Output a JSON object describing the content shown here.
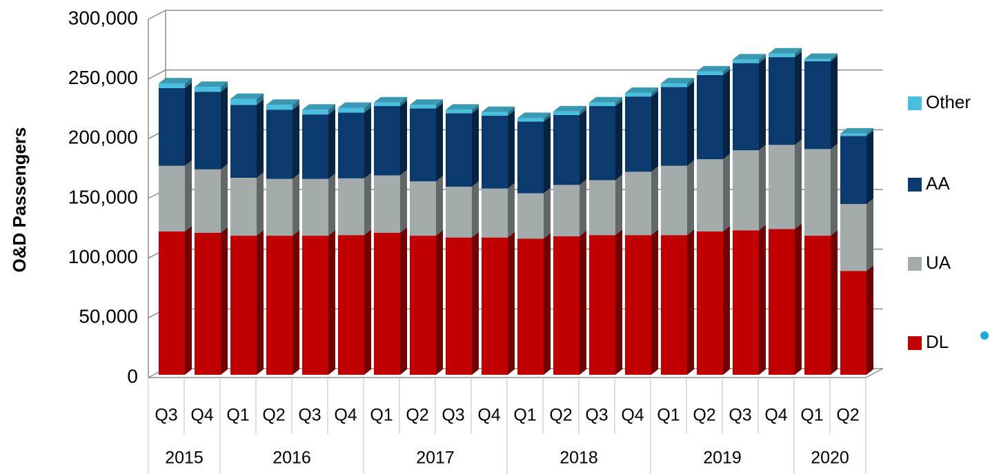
{
  "chart_data": {
    "type": "bar",
    "stacked": true,
    "y_label": "O&D Passengers",
    "categories": [
      "Q3",
      "Q4",
      "Q1",
      "Q2",
      "Q3",
      "Q4",
      "Q1",
      "Q2",
      "Q3",
      "Q4",
      "Q1",
      "Q2",
      "Q3",
      "Q4",
      "Q1",
      "Q2",
      "Q3",
      "Q4",
      "Q1",
      "Q2"
    ],
    "years": [
      "2015",
      "2016",
      "2017",
      "2018",
      "2019",
      "2020"
    ],
    "series": [
      {
        "name": "DL",
        "color": "#c00000",
        "values": [
          120000,
          119000,
          116500,
          116500,
          116500,
          117000,
          119000,
          116500,
          115000,
          115000,
          114000,
          116000,
          117000,
          117000,
          117000,
          120000,
          121000,
          122000,
          116500,
          87000
        ]
      },
      {
        "name": "UA",
        "color": "#a3abab",
        "values": [
          55000,
          53000,
          48500,
          47500,
          47500,
          47500,
          48000,
          45500,
          42500,
          41000,
          38000,
          43000,
          46000,
          53000,
          58000,
          60500,
          67000,
          70500,
          72500,
          56000
        ]
      },
      {
        "name": "AA",
        "color": "#0a3a6e",
        "values": [
          65000,
          65000,
          61000,
          58000,
          54000,
          55000,
          58000,
          61000,
          61500,
          61000,
          60000,
          58500,
          62000,
          63000,
          66000,
          70500,
          73000,
          73500,
          73500,
          57000
        ]
      },
      {
        "name": "Other",
        "color": "#48bfe0",
        "values": [
          4000,
          4000,
          5000,
          4000,
          4000,
          4000,
          3000,
          3000,
          3000,
          3000,
          3000,
          3000,
          3000,
          3000,
          3000,
          3000,
          3000,
          3000,
          2000,
          2000
        ]
      }
    ],
    "ylim": [
      0,
      300000
    ],
    "yticks": [
      0,
      {
        "value": 50000,
        "label": "50,000"
      },
      {
        "value": 100000,
        "label": "100,000"
      },
      {
        "value": 150000,
        "label": "150,000"
      },
      {
        "value": 200000,
        "label": "200,000"
      },
      {
        "value": 250000,
        "label": "250,000"
      },
      {
        "value": 300000,
        "label": "300,000"
      }
    ],
    "grid": true,
    "legend": "right"
  }
}
